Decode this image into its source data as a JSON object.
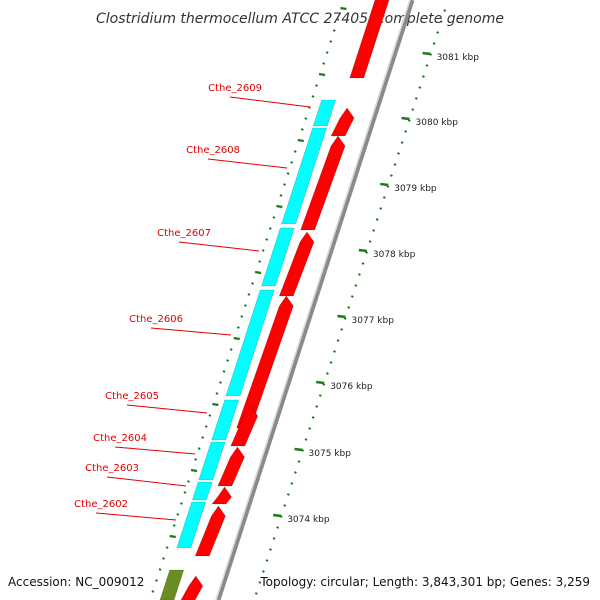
{
  "title": "Clostridium thermocellum ATCC 27405, complete genome",
  "footer": {
    "accession": "Accession: NC_009012",
    "topology": "Topology: circular; Length: 3,843,301 bp; Genes: 3,259"
  },
  "colors": {
    "forward_gene": "#ff0000",
    "cds": "#00ffff",
    "green_feature": "#6b8e23",
    "tick": "#1a7a1a",
    "label": "#e00000",
    "backbone": "#888888"
  },
  "scale_labels": [
    "3081 kbp",
    "3080 kbp",
    "3079 kbp",
    "3078 kbp",
    "3077 kbp",
    "3076 kbp",
    "3075 kbp",
    "3074 kbp"
  ],
  "gene_labels": [
    "Cthe_2609",
    "Cthe_2608",
    "Cthe_2607",
    "Cthe_2606",
    "Cthe_2605",
    "Cthe_2604",
    "Cthe_2603",
    "Cthe_2602"
  ]
}
